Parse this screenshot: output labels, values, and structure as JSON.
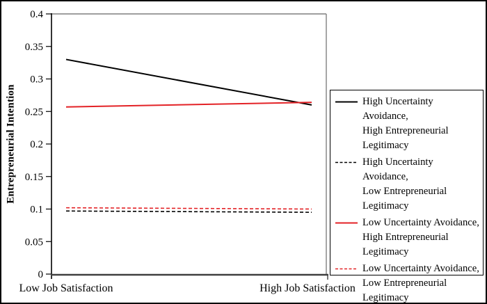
{
  "chart_data": {
    "type": "line",
    "title": "",
    "xlabel": "",
    "ylabel": "Entrepreneurial Intention",
    "categories": [
      "Low Job Satisfaction",
      "High Job Satisfaction"
    ],
    "series": [
      {
        "name": "High Uncertainty Avoidance, High Entrepreneurial Legitimacy",
        "legend_lines": [
          "High Uncertainty Avoidance,",
          "High Entrepreneurial",
          "Legitimacy"
        ],
        "values": [
          0.33,
          0.26
        ],
        "color": "#000000",
        "style": "solid"
      },
      {
        "name": "High Uncertainty Avoidance, Low Entrepreneurial Legitimacy",
        "legend_lines": [
          "High Uncertainty Avoidance,",
          "Low Entrepreneurial",
          "Legitimacy"
        ],
        "values": [
          0.097,
          0.095
        ],
        "color": "#000000",
        "style": "dashed"
      },
      {
        "name": "Low Uncertainty Avoidance, High Entrepreneurial Legitimacy",
        "legend_lines": [
          "Low Uncertainty Avoidance,",
          "High Entrepreneurial",
          "Legitimacy"
        ],
        "values": [
          0.257,
          0.264
        ],
        "color": "#e32226",
        "style": "solid"
      },
      {
        "name": "Low Uncertainty Avoidance, Low Entrepreneurial Legitimacy",
        "legend_lines": [
          "Low Uncertainty Avoidance,",
          "Low Entrepreneurial",
          "Legitimacy"
        ],
        "values": [
          0.102,
          0.1
        ],
        "color": "#e32226",
        "style": "dashed"
      }
    ],
    "ylim": [
      0,
      0.4
    ],
    "yticks": [
      {
        "value": 0,
        "label": "0"
      },
      {
        "value": 0.05,
        "label": "0.05"
      },
      {
        "value": 0.1,
        "label": "0.1"
      },
      {
        "value": 0.15,
        "label": "0.15"
      },
      {
        "value": 0.2,
        "label": "0.2"
      },
      {
        "value": 0.25,
        "label": "0.25"
      },
      {
        "value": 0.3,
        "label": "0.3"
      },
      {
        "value": 0.35,
        "label": "0.35"
      },
      {
        "value": 0.4,
        "label": "0.4"
      }
    ],
    "grid": false,
    "legend_position": "right"
  }
}
